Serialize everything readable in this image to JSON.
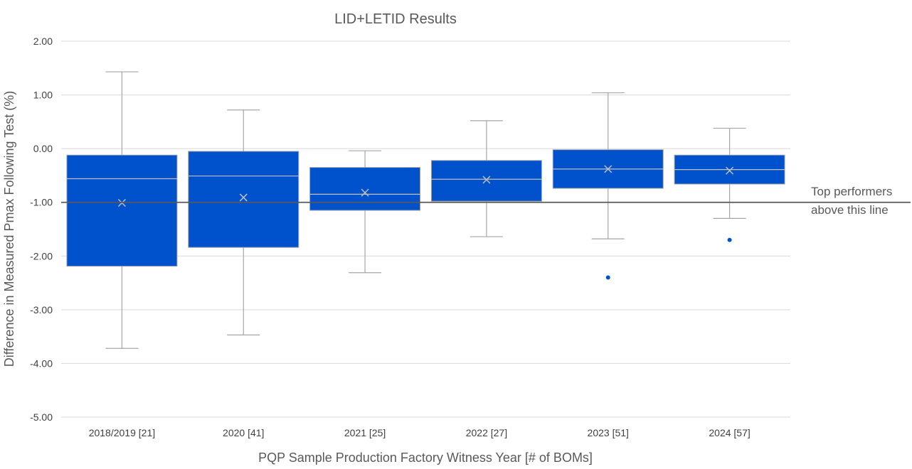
{
  "chart_data": {
    "type": "box",
    "title": "LID+LETID Results",
    "xlabel": "PQP Sample Production Factory Witness Year [# of BOMs]",
    "ylabel": "Difference in Measured Pmax Following Test (%)",
    "ylim": [
      -5.0,
      2.0
    ],
    "y_ticks": [
      "2.00",
      "1.00",
      "0.00",
      "-1.00",
      "-2.00",
      "-3.00",
      "-4.00",
      "-5.00"
    ],
    "y_tick_values": [
      2,
      1,
      0,
      -1,
      -2,
      -3,
      -4,
      -5
    ],
    "grid": true,
    "categories": [
      "2018/2019 [21]",
      "2020 [41]",
      "2021 [25]",
      "2022 [27]",
      "2023 [51]",
      "2024 [57]"
    ],
    "boxes": [
      {
        "whisker_high": 1.43,
        "q3": -0.12,
        "median": -0.56,
        "mean": -1.01,
        "q1": -2.19,
        "whisker_low": -3.72,
        "outliers": []
      },
      {
        "whisker_high": 0.72,
        "q3": -0.05,
        "median": -0.51,
        "mean": -0.91,
        "q1": -1.84,
        "whisker_low": -3.47,
        "outliers": []
      },
      {
        "whisker_high": -0.04,
        "q3": -0.35,
        "median": -0.85,
        "mean": -0.82,
        "q1": -1.15,
        "whisker_low": -2.31,
        "outliers": []
      },
      {
        "whisker_high": 0.52,
        "q3": -0.22,
        "median": -0.57,
        "mean": -0.58,
        "q1": -0.98,
        "whisker_low": -1.64,
        "outliers": []
      },
      {
        "whisker_high": 1.04,
        "q3": -0.02,
        "median": -0.38,
        "mean": -0.38,
        "q1": -0.74,
        "whisker_low": -1.68,
        "outliers": [
          -2.4
        ]
      },
      {
        "whisker_high": 0.38,
        "q3": -0.12,
        "median": -0.39,
        "mean": -0.41,
        "q1": -0.66,
        "whisker_low": -1.3,
        "outliers": [
          -1.7
        ]
      }
    ],
    "reference_line": {
      "value": -1.0,
      "label_line1": "Top performers",
      "label_line2": "above this line"
    },
    "colors": {
      "box_fill": "#0052CC",
      "whisker": "#A6A6A6",
      "grid": "#D9D9D9",
      "reference": "#595959",
      "median_mean": "#BFBFBF"
    }
  }
}
